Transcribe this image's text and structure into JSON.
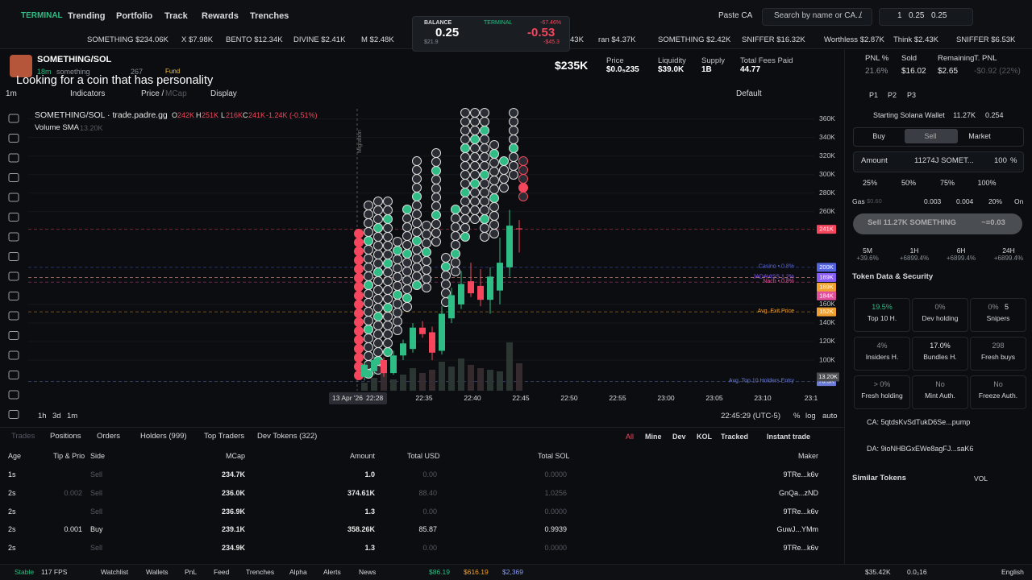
{
  "nav": {
    "brand": "TERMINAL",
    "links": [
      "Trending",
      "Portfolio",
      "Track",
      "Rewards",
      "Trenches"
    ],
    "paste": "Paste CA",
    "search": "Search by name or CA...",
    "search_key": "/",
    "wallets": "1",
    "sol_balance": "0.25",
    "bag_balance": "0.25"
  },
  "balance": {
    "label": "BALANCE",
    "value": "0.25",
    "usd": "$21.9",
    "terminal": "TERMINAL",
    "change": "-67.46%",
    "pnl": "-0.53",
    "pnl_usd": "-$45.3"
  },
  "ticker": [
    "SOMETHING $234.06K",
    "X $7.98K",
    "BENTO $12.34K",
    "DIVINE $2.41K",
    "M $2.48K",
    "43K",
    "ran $4.37K",
    "SOMETHING $2.42K",
    "SNIFFER $16.32K",
    "Worthless $2.87K",
    "Think $2.43K",
    "SNIFFER $6.53K"
  ],
  "token": {
    "pair": "SOMETHING/SOL",
    "age": "18m",
    "name": "something",
    "watchers": "267",
    "fund": "Fund",
    "caption": "Looking for a coin that has personality"
  },
  "stats": {
    "mcap": "$235K",
    "items": [
      {
        "label": "Price",
        "value": "$0.0₅235"
      },
      {
        "label": "Liquidity",
        "value": "$39.0K"
      },
      {
        "label": "Supply",
        "value": "1B"
      },
      {
        "label": "Total Fees Paid",
        "value": "44.77"
      }
    ]
  },
  "toolbar": {
    "interval": "1m",
    "indicators": "Indicators",
    "price": "Price /",
    "mcap": "MCap",
    "display": "Display",
    "layout": "Default"
  },
  "chart_data": {
    "type": "candlestick",
    "title": "SOMETHING/SOL · trade.padre.gg",
    "ohlc": [
      {
        "key": "O",
        "value": "242K"
      },
      {
        "key": "H",
        "value": "251K"
      },
      {
        "key": "L",
        "value": "216K"
      },
      {
        "key": "C",
        "value": "241K"
      }
    ],
    "change": "-1.24K (-0.51%)",
    "volume_label": "Volume SMA",
    "volume_sma": "13.20K",
    "migration": "Migration",
    "open": [
      82,
      88,
      100,
      86,
      105,
      112,
      135,
      130,
      110,
      145,
      160,
      185,
      180,
      165,
      175,
      200,
      242
    ],
    "high": [
      98,
      104,
      103,
      110,
      122,
      140,
      142,
      136,
      158,
      178,
      196,
      205,
      198,
      200,
      232,
      262,
      251
    ],
    "low": [
      78,
      84,
      82,
      84,
      100,
      108,
      124,
      100,
      106,
      140,
      155,
      168,
      158,
      150,
      160,
      190,
      216
    ],
    "close": [
      95,
      100,
      86,
      105,
      118,
      135,
      128,
      108,
      150,
      170,
      182,
      172,
      165,
      190,
      205,
      245,
      241
    ],
    "volume": [
      25,
      40,
      60,
      35,
      50,
      70,
      55,
      65,
      90,
      75,
      100,
      80,
      70,
      65,
      60,
      150,
      85
    ],
    "ylim": [
      67,
      371
    ],
    "volume_ylim": [
      0,
      250
    ],
    "yticks": [
      {
        "value": 360,
        "label": "360K"
      },
      {
        "value": 340,
        "label": "340K"
      },
      {
        "value": 320,
        "label": "320K"
      },
      {
        "value": 300,
        "label": "300K"
      },
      {
        "value": 280,
        "label": "280K"
      },
      {
        "value": 260,
        "label": "260K"
      },
      {
        "value": 160,
        "label": "160K"
      },
      {
        "value": 140,
        "label": "140K"
      },
      {
        "value": 120,
        "label": "120K"
      },
      {
        "value": 100,
        "label": "100K"
      }
    ],
    "price_lines": [
      {
        "value": 241,
        "tag": "241K",
        "color": "#f6465d"
      },
      {
        "label": "Casino • 0.8%",
        "value": 200,
        "tag": "200K",
        "color": "#5563de"
      },
      {
        "label": "JADAVISS 1.2%",
        "value": 189,
        "tag": "189K",
        "color": "#8a5cf6"
      },
      {
        "value": 189,
        "tag": "189K",
        "color": "#f0a030"
      },
      {
        "label": "Nach • 0.8%",
        "value": 184,
        "tag": "184K",
        "color": "#e0509a"
      },
      {
        "label": "Avg. Exit Price",
        "value": 152,
        "tag": "152K",
        "color": "#f0a030"
      },
      {
        "label": "Avg. Top 10 Holders Entry",
        "value": 76.9,
        "tag": "76.9K",
        "color": "#6a7bd8"
      }
    ],
    "date": "13 Apr '26",
    "xlabels": [
      "22:28",
      "22:35",
      "22:40",
      "22:45",
      "22:50",
      "22:55",
      "23:00",
      "23:05",
      "23:10",
      "23:1"
    ],
    "timezone": "22:45:29 (UTC-5)",
    "ranges": [
      "1h",
      "3d",
      "1m"
    ],
    "scale": [
      "%",
      "log",
      "auto"
    ]
  },
  "pnl": [
    {
      "label": "PNL %",
      "value": "21.6%"
    },
    {
      "label": "Sold",
      "value": "$16.02"
    },
    {
      "label": "Remaining",
      "value": "$2.65"
    },
    {
      "label": "T. PNL",
      "value": "-$0.92 (22%)"
    }
  ],
  "trade": {
    "presets": [
      "P1",
      "P2",
      "P3"
    ],
    "wallet": "Starting Solana Wallet",
    "wallet_tokens": "11.27K",
    "wallet_sol": "0.254",
    "sides": [
      "Buy",
      "Sell",
      "Market"
    ],
    "amount_label": "Amount",
    "amount": "11274J SOMET...",
    "percent": "100",
    "percent_unit": "%",
    "quick": [
      "25%",
      "50%",
      "75%",
      "100%"
    ],
    "gas_label": "Gas",
    "gas": "$0.60",
    "fees": [
      "0.003",
      "0.004",
      "20%",
      "On"
    ],
    "sell": "Sell 11.27K SOMETHING",
    "sell_sol": "~≡0.03",
    "frames": [
      {
        "label": "5M",
        "value": "+39.6%"
      },
      {
        "label": "1H",
        "value": "+6899.4%"
      },
      {
        "label": "6H",
        "value": "+6899.4%"
      },
      {
        "label": "24H",
        "value": "+6899.4%"
      }
    ]
  },
  "security": {
    "title": "Token Data & Security",
    "cells": [
      {
        "value": "19.5%",
        "label": "Top 10 H."
      },
      {
        "value": "0%",
        "label": "Dev holding"
      },
      {
        "value": "0%",
        "extra": "5",
        "label": "Snipers"
      },
      {
        "value": "4%",
        "label": "Insiders H."
      },
      {
        "value": "17.0%",
        "label": "Bundles H."
      },
      {
        "value": "298",
        "label": "Fresh buys"
      },
      {
        "value": "> 0%",
        "label": "Fresh holding"
      },
      {
        "value": "No",
        "label": "Mint Auth."
      },
      {
        "value": "No",
        "label": "Freeze Auth."
      }
    ],
    "ca": "CA: 5qtdsKvSdTukD6Se...pump",
    "da": "DA: 9ioNHBGxEWe8agFJ...saK6"
  },
  "similar": {
    "title": "Similar Tokens",
    "sort": "VOL"
  },
  "trades": {
    "tabs": [
      "Trades",
      "Positions",
      "Orders",
      "Holders (999)",
      "Top Traders",
      "Dev Tokens (322)"
    ],
    "filters": [
      "All",
      "Mine",
      "Dev",
      "KOL",
      "Tracked",
      "Instant trade"
    ],
    "headers": [
      "Age",
      "Tip & Prio",
      "Side",
      "MCap",
      "Amount",
      "Total USD",
      "Total SOL",
      "Maker"
    ],
    "rows": [
      [
        "1s",
        null,
        "Sell",
        "234.7K",
        "1.0",
        "0.00",
        "0.0000",
        "9TRe...k6v"
      ],
      [
        "2s",
        "0.002",
        "Sell",
        "236.0K",
        "374.61K",
        "88.40",
        "1.0256",
        "GnQa...zND"
      ],
      [
        "2s",
        null,
        "Sell",
        "236.9K",
        "1.3",
        "0.00",
        "0.0000",
        "9TRe...k6v"
      ],
      [
        "2s",
        "0.001",
        "Buy",
        "239.1K",
        "358.26K",
        "85.87",
        "0.9939",
        "GuwJ...YMm"
      ],
      [
        "2s",
        null,
        "Sell",
        "234.9K",
        "1.3",
        "0.00",
        "0.0000",
        "9TRe...k6v"
      ]
    ]
  },
  "footer": {
    "left": [
      "Stable",
      "117 FPS",
      "Watchlist",
      "Wallets",
      "PnL",
      "Feed",
      "Trenches",
      "Alpha",
      "Alerts",
      "News"
    ],
    "prices": [
      "$86.19",
      "$616.19",
      "$2,369"
    ],
    "right": [
      "$35.42K",
      "0.0₂16",
      "English"
    ]
  }
}
